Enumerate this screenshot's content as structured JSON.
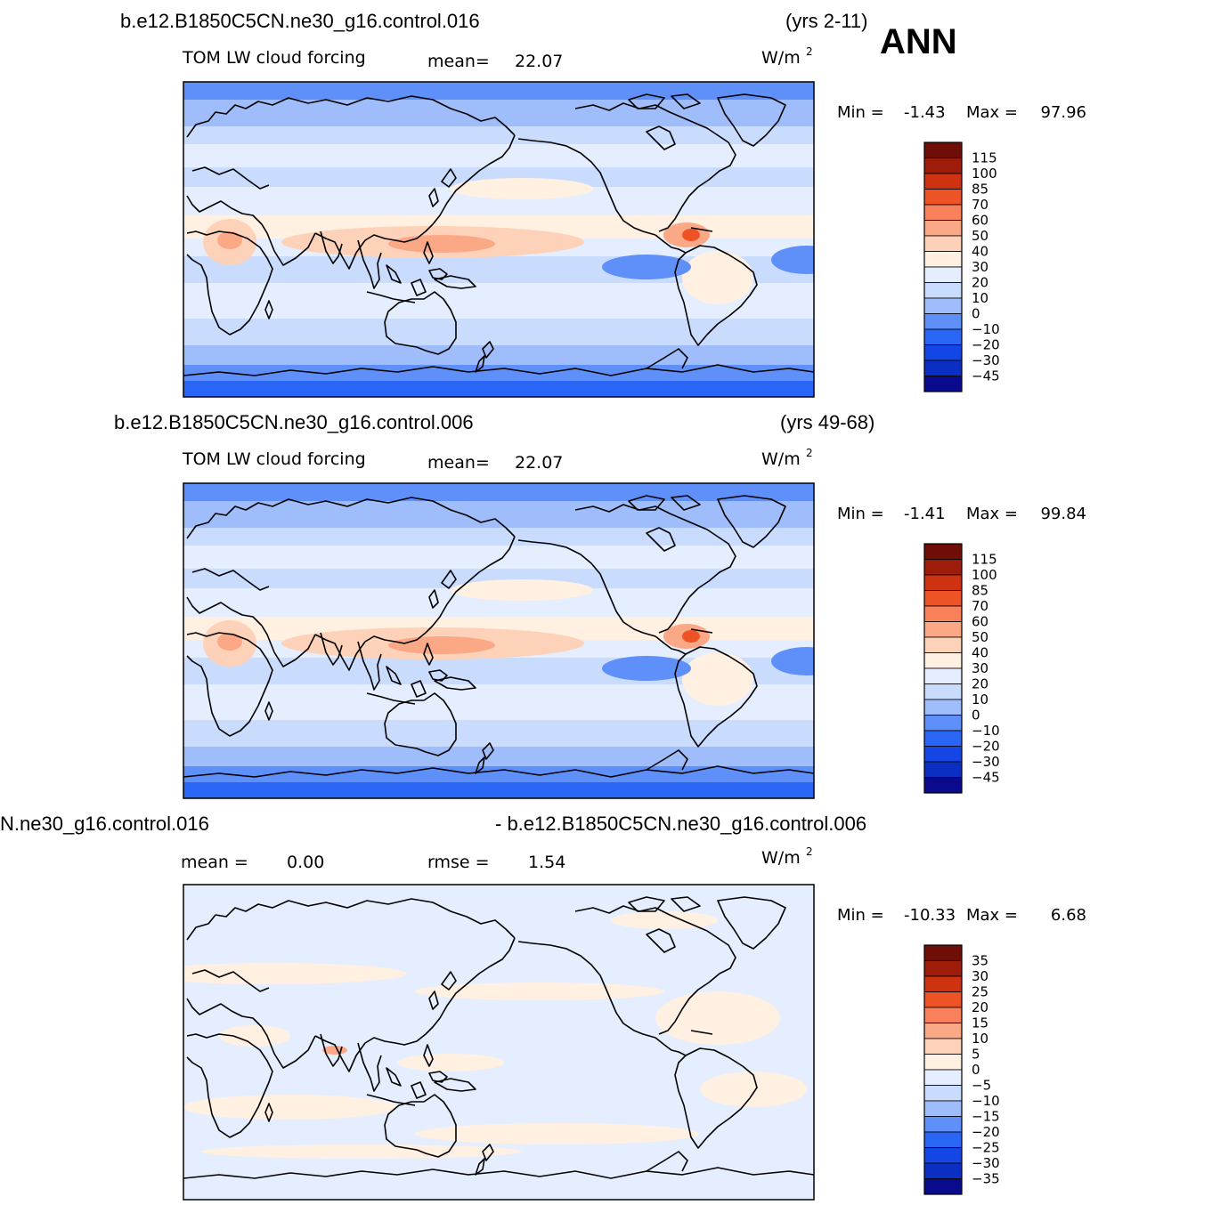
{
  "season": "ANN",
  "colors": {
    "panel1_2": [
      "#0a0a8c",
      "#0a2fc2",
      "#1446e6",
      "#2a66f5",
      "#5f8ff8",
      "#9fbdfb",
      "#c9dcfd",
      "#e4eefe",
      "#fff0e2",
      "#fdd2b8",
      "#fba886",
      "#f8805a",
      "#ee5325",
      "#cf3210",
      "#9e1d0a",
      "#6e0e06"
    ],
    "panel3": [
      "#0a0a8c",
      "#0a2fc2",
      "#1446e6",
      "#2a66f5",
      "#5f8ff8",
      "#9fbdfb",
      "#c9dcfd",
      "#e4eefe",
      "#fff0e2",
      "#fdd2b8",
      "#fba886",
      "#f8805a",
      "#ee5325",
      "#cf3210",
      "#9e1d0a",
      "#6e0e06"
    ]
  },
  "panels": [
    {
      "case": "b.e12.B1850C5CN.ne30_g16.control.016",
      "years": "(yrs 2-11)",
      "variable": "TOM LW cloud forcing",
      "mean_label": "mean=",
      "mean_value": "22.07",
      "units_base": "W/m",
      "units_exp": "2",
      "min_label": "Min =",
      "min_value": "-1.43",
      "max_label": "Max =",
      "max_value": "97.96",
      "levels": [
        "115",
        "100",
        "85",
        "70",
        "60",
        "50",
        "40",
        "30",
        "20",
        "10",
        "0",
        "−10",
        "−20",
        "−30",
        "−45"
      ]
    },
    {
      "case": "b.e12.B1850C5CN.ne30_g16.control.006",
      "years": "(yrs 49-68)",
      "variable": "TOM LW cloud forcing",
      "mean_label": "mean=",
      "mean_value": "22.07",
      "units_base": "W/m",
      "units_exp": "2",
      "min_label": "Min =",
      "min_value": "-1.41",
      "max_label": "Max =",
      "max_value": "99.84",
      "levels": [
        "115",
        "100",
        "85",
        "70",
        "60",
        "50",
        "40",
        "30",
        "20",
        "10",
        "0",
        "−10",
        "−20",
        "−30",
        "−45"
      ]
    },
    {
      "case_left": "N.ne30_g16.control.016",
      "case_right": "- b.e12.B1850C5CN.ne30_g16.control.006",
      "mean_label": "mean =",
      "mean_value": "0.00",
      "rmse_label": "rmse =",
      "rmse_value": "1.54",
      "units_base": "W/m",
      "units_exp": "2",
      "min_label": "Min =",
      "min_value": "-10.33",
      "max_label": "Max =",
      "max_value": "6.68",
      "levels": [
        "35",
        "30",
        "25",
        "20",
        "15",
        "10",
        "5",
        "0",
        "−5",
        "−10",
        "−15",
        "−20",
        "−25",
        "−30",
        "−35"
      ]
    }
  ]
}
